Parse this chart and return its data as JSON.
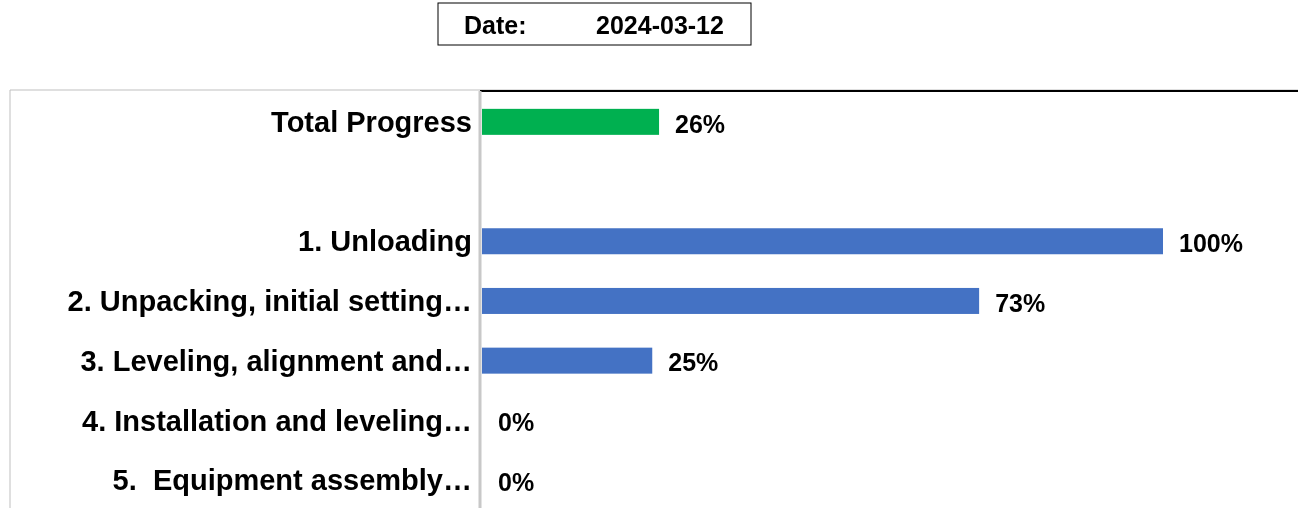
{
  "chart_data": {
    "type": "bar",
    "orientation": "horizontal",
    "title": "Date:          2024-03-12",
    "categories": [
      "Total Progress",
      null,
      "1. Unloading",
      "2. Unpacking, initial setting…",
      "3. Leveling, alignment and…",
      "4. Installation and leveling…",
      "5.  Equipment assembly…"
    ],
    "values": [
      26,
      null,
      100,
      73,
      25,
      0,
      0
    ],
    "colors": [
      "#00b050",
      null,
      "#4472c4",
      "#4472c4",
      "#4472c4",
      "#4472c4",
      "#4472c4"
    ],
    "value_labels": [
      "26%",
      null,
      "100%",
      "73%",
      "25%",
      "0%",
      "0%"
    ]
  }
}
